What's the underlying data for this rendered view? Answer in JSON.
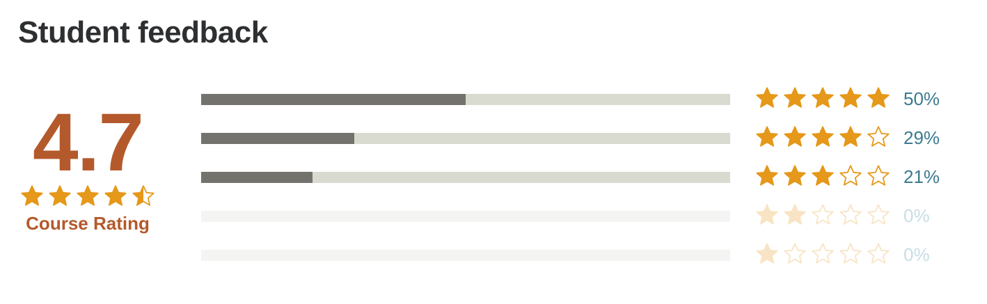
{
  "title": "Student feedback",
  "summary": {
    "rating": "4.7",
    "rating_value": 4.7,
    "label": "Course Rating"
  },
  "distribution": [
    {
      "stars": 5,
      "percent_label": "50%",
      "percent": 50
    },
    {
      "stars": 4,
      "percent_label": "29%",
      "percent": 29
    },
    {
      "stars": 3,
      "percent_label": "21%",
      "percent": 21
    },
    {
      "stars": 2,
      "percent_label": "0%",
      "percent": 0
    },
    {
      "stars": 1,
      "percent_label": "0%",
      "percent": 0
    }
  ],
  "icons": {
    "full": "star-icon",
    "half": "star-half-icon",
    "empty": "star-outline-icon"
  },
  "colors": {
    "star": "#e59819",
    "rating_text": "#b4592b",
    "bar_fill": "#73726c",
    "bar_track": "#d9dad0",
    "percent_link": "#3b7a8f"
  }
}
